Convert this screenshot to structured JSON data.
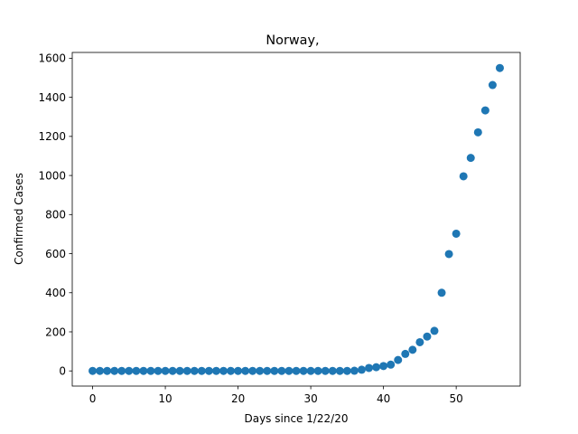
{
  "chart_data": {
    "type": "scatter",
    "title": "Norway,",
    "xlabel": "Days since 1/22/20",
    "ylabel": "Confirmed Cases",
    "xlim": [
      -2.8,
      58.8
    ],
    "ylim": [
      -77.6,
      1629.6
    ],
    "xticks": [
      0,
      10,
      20,
      30,
      40,
      50
    ],
    "yticks": [
      0,
      200,
      400,
      600,
      800,
      1000,
      1200,
      1400,
      1600
    ],
    "grid": false,
    "marker_color": "#1f77b4",
    "series": [
      {
        "x": [
          0,
          1,
          2,
          3,
          4,
          5,
          6,
          7,
          8,
          9,
          10,
          11,
          12,
          13,
          14,
          15,
          16,
          17,
          18,
          19,
          20,
          21,
          22,
          23,
          24,
          25,
          26,
          27,
          28,
          29,
          30,
          31,
          32,
          33,
          34,
          35,
          36,
          37,
          38,
          39,
          40,
          41,
          42,
          43,
          44,
          45,
          46,
          47,
          48,
          49,
          50,
          51,
          52,
          53,
          54,
          55,
          56
        ],
        "y": [
          0,
          0,
          0,
          0,
          0,
          0,
          0,
          0,
          0,
          0,
          0,
          0,
          0,
          0,
          0,
          0,
          0,
          0,
          0,
          0,
          0,
          0,
          0,
          0,
          0,
          0,
          0,
          0,
          0,
          0,
          0,
          0,
          0,
          0,
          0,
          0,
          1,
          6,
          15,
          19,
          25,
          32,
          56,
          87,
          108,
          147,
          176,
          205,
          400,
          598,
          702,
          996,
          1090,
          1221,
          1333,
          1463,
          1550
        ]
      }
    ]
  }
}
